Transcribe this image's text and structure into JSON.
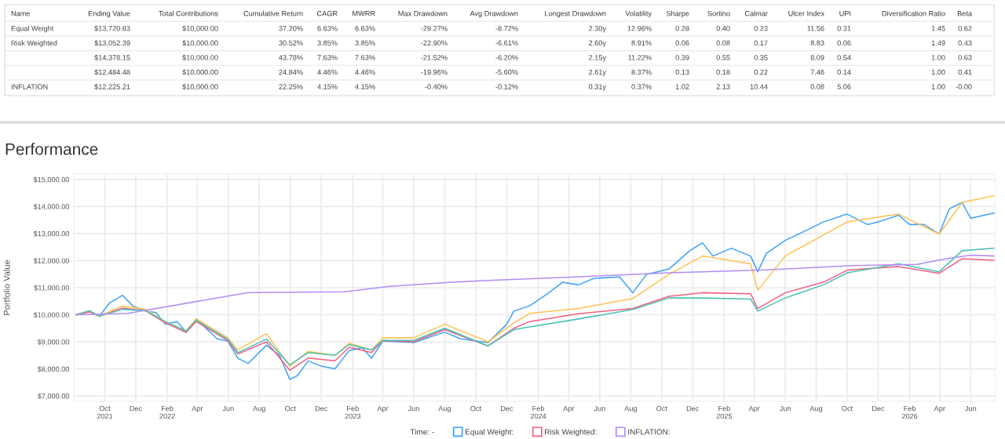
{
  "chart_data": [
    {
      "type": "other",
      "categories": [
        "Name",
        "Ending Value",
        "Total Contributions",
        "Cumulative Return",
        "CAGR",
        "MWRR",
        "Max Drawdown",
        "Avg Drawdown",
        "Longest Drawdown",
        "Volatility",
        "Sharpe",
        "Sortino",
        "Calmar",
        "Ulcer Index",
        "UPI",
        "Diversification Ratio",
        "Beta"
      ],
      "cell_labels": [
        [
          "Equal Weight",
          "$13,720.83",
          "$10,000.00",
          "37.20%",
          "6.63%",
          "6.63%",
          "-29.27%",
          "-8.72%",
          "2.30y",
          "12.96%",
          "0.28",
          "0.40",
          "0.23",
          "11.56",
          "0.31",
          "1.45",
          "0.62"
        ],
        [
          "Risk Weighted",
          "$13,052.39",
          "$10,000.00",
          "30.52%",
          "3.85%",
          "3.85%",
          "-22.90%",
          "-6.61%",
          "2.60y",
          "8.91%",
          "0.06",
          "0.08",
          "0.17",
          "8.83",
          "0.06",
          "1.49",
          "0.43"
        ],
        [
          null,
          "$14,378.15",
          "$10,000.00",
          "43.78%",
          "7.63%",
          "7.63%",
          "-21.52%",
          "-6.20%",
          "2.15y",
          "11.22%",
          "0.39",
          "0.55",
          "0.35",
          "8.09",
          "0.54",
          "1.00",
          "0.63"
        ],
        [
          null,
          "$12,484.48",
          "$10,000.00",
          "24.84%",
          "4.46%",
          "4.46%",
          "-19.96%",
          "-5.60%",
          "2.61y",
          "8.37%",
          "0.13",
          "0.18",
          "0.22",
          "7.46",
          "0.14",
          "1.00",
          "0.41"
        ],
        [
          "INFLATION",
          "$12,225.21",
          "$10,000.00",
          "22.25%",
          "4.15%",
          "4.15%",
          "-0.40%",
          "-0.12%",
          "0.31y",
          "0.37%",
          "1.02",
          "2.13",
          "10.44",
          "0.08",
          "5.06",
          "1.00",
          "-0.00"
        ]
      ]
    },
    {
      "type": "line",
      "title": "Performance",
      "ylabel": "Portfolio Value",
      "legend_title": "Time: -",
      "legend": "bottom",
      "grid": true,
      "xlim": [
        "2021-08-01",
        "2026-07-20"
      ],
      "xticks": [
        {
          "value": "2021-10-01",
          "label": "Oct\n2021"
        },
        {
          "value": "2021-12-01",
          "label": "Dec"
        },
        {
          "value": "2022-02-01",
          "label": "Feb\n2022"
        },
        {
          "value": "2022-04-01",
          "label": "Apr"
        },
        {
          "value": "2022-06-01",
          "label": "Jun"
        },
        {
          "value": "2022-08-01",
          "label": "Aug"
        },
        {
          "value": "2022-10-01",
          "label": "Oct"
        },
        {
          "value": "2022-12-01",
          "label": "Dec"
        },
        {
          "value": "2023-02-01",
          "label": "Feb\n2023"
        },
        {
          "value": "2023-04-01",
          "label": "Apr"
        },
        {
          "value": "2023-06-01",
          "label": "Jun"
        },
        {
          "value": "2023-08-01",
          "label": "Aug"
        },
        {
          "value": "2023-10-01",
          "label": "Oct"
        },
        {
          "value": "2023-12-01",
          "label": "Dec"
        },
        {
          "value": "2024-02-01",
          "label": "Feb\n2024"
        },
        {
          "value": "2024-04-01",
          "label": "Apr"
        },
        {
          "value": "2024-06-01",
          "label": "Jun"
        },
        {
          "value": "2024-08-01",
          "label": "Aug"
        },
        {
          "value": "2024-10-01",
          "label": "Oct"
        },
        {
          "value": "2024-12-01",
          "label": "Dec"
        },
        {
          "value": "2025-02-01",
          "label": "Feb\n2025"
        },
        {
          "value": "2025-04-01",
          "label": "Apr"
        },
        {
          "value": "2025-06-01",
          "label": "Jun"
        },
        {
          "value": "2025-08-01",
          "label": "Aug"
        },
        {
          "value": "2025-10-01",
          "label": "Oct"
        },
        {
          "value": "2025-12-01",
          "label": "Dec"
        },
        {
          "value": "2026-02-01",
          "label": "Feb\n2026"
        },
        {
          "value": "2026-04-01",
          "label": "Apr"
        },
        {
          "value": "2026-06-01",
          "label": "Jun"
        }
      ],
      "ylim": [
        6800,
        15200
      ],
      "yticks": [
        {
          "value": 7000,
          "label": "$7,000.00"
        },
        {
          "value": 8000,
          "label": "$8,000.00"
        },
        {
          "value": 9000,
          "label": "$9,000.00"
        },
        {
          "value": 10000,
          "label": "$10,000.00"
        },
        {
          "value": 11000,
          "label": "$11,000.00"
        },
        {
          "value": 12000,
          "label": "$12,000.00"
        },
        {
          "value": 13000,
          "label": "$13,000.00"
        },
        {
          "value": 14000,
          "label": "$14,000.00"
        },
        {
          "value": 15000,
          "label": "$15,000.00"
        }
      ],
      "x": [
        "2021-08-06",
        "2021-09-01",
        "2021-09-20",
        "2021-11-05",
        "2021-12-20",
        "2022-01-28",
        "2022-03-10",
        "2022-03-30",
        "2022-05-31",
        "2022-06-20",
        "2022-08-15",
        "2022-09-30",
        "2022-11-05",
        "2022-12-28",
        "2023-01-25",
        "2023-03-10",
        "2023-04-01",
        "2023-06-01",
        "2023-08-01",
        "2023-10-25",
        "2023-12-15",
        "2024-01-15",
        "2024-04-20",
        "2024-08-05",
        "2024-10-15",
        "2024-12-20",
        "2025-03-25",
        "2025-04-08",
        "2025-06-01",
        "2025-08-15",
        "2025-10-01",
        "2026-01-10",
        "2026-03-31",
        "2026-05-15",
        "2026-07-17"
      ],
      "series": [
        {
          "name": "Equal Weight:",
          "color": "#3fa3f5",
          "x": [
            "2021-08-06",
            "2021-09-01",
            "2021-09-20",
            "2021-10-10",
            "2021-11-05",
            "2021-11-25",
            "2021-12-20",
            "2022-01-10",
            "2022-01-28",
            "2022-02-20",
            "2022-03-10",
            "2022-03-30",
            "2022-05-10",
            "2022-05-31",
            "2022-06-20",
            "2022-07-10",
            "2022-08-15",
            "2022-09-10",
            "2022-09-30",
            "2022-10-15",
            "2022-11-05",
            "2022-12-01",
            "2022-12-28",
            "2023-01-25",
            "2023-02-20",
            "2023-03-10",
            "2023-04-01",
            "2023-06-01",
            "2023-08-01",
            "2023-09-01",
            "2023-10-25",
            "2023-12-01",
            "2023-12-15",
            "2024-01-15",
            "2024-02-15",
            "2024-03-20",
            "2024-04-20",
            "2024-05-20",
            "2024-07-10",
            "2024-08-05",
            "2024-09-01",
            "2024-10-15",
            "2024-11-25",
            "2024-12-20",
            "2025-01-10",
            "2025-02-15",
            "2025-03-25",
            "2025-04-08",
            "2025-04-25",
            "2025-06-01",
            "2025-07-15",
            "2025-08-15",
            "2025-10-01",
            "2025-11-10",
            "2025-12-01",
            "2026-01-10",
            "2026-02-01",
            "2026-03-01",
            "2026-03-31",
            "2026-04-20",
            "2026-05-15",
            "2026-06-01",
            "2026-07-17"
          ],
          "values": [
            10000,
            10135,
            9940,
            10430,
            10720,
            10330,
            10135,
            10080,
            9650,
            9750,
            9360,
            9845,
            9110,
            9030,
            8390,
            8200,
            8875,
            8490,
            7615,
            7750,
            8295,
            8100,
            8000,
            8680,
            8780,
            8390,
            9030,
            8970,
            9360,
            9110,
            8970,
            9650,
            10135,
            10330,
            10720,
            11200,
            11105,
            11340,
            11400,
            10815,
            11490,
            11685,
            12365,
            12655,
            12170,
            12460,
            12170,
            11590,
            12270,
            12750,
            13140,
            13430,
            13720,
            13335,
            13430,
            13680,
            13335,
            13335,
            12985,
            13915,
            14150,
            13565,
            13760
          ]
        },
        {
          "name": "Risk Weighted:",
          "color": "#f06080",
          "values": [
            10000,
            10100,
            9950,
            10250,
            10150,
            9700,
            9350,
            9750,
            9050,
            8550,
            9000,
            7950,
            8400,
            8300,
            8800,
            8600,
            9050,
            9000,
            9450,
            8850,
            9500,
            9750,
            10040,
            10230,
            10680,
            10815,
            10775,
            10230,
            10815,
            11200,
            11650,
            11780,
            11530,
            12070,
            12015
          ]
        },
        {
          "color": "#ffc250",
          "values": [
            10000,
            10150,
            9950,
            10330,
            10200,
            9750,
            9400,
            9850,
            9150,
            8700,
            9300,
            8100,
            8650,
            8500,
            8950,
            8700,
            9150,
            9150,
            9650,
            9000,
            9700,
            10050,
            10230,
            10600,
            11490,
            12170,
            11880,
            10910,
            12170,
            12945,
            13430,
            13720,
            12985,
            14150,
            14400
          ]
        },
        {
          "color": "#4cc1b5",
          "values": [
            10000,
            10150,
            9950,
            10200,
            10150,
            9750,
            9400,
            9800,
            9100,
            8600,
            9100,
            8150,
            8600,
            8500,
            8900,
            8700,
            9050,
            9050,
            9500,
            8850,
            9450,
            9555,
            9845,
            10195,
            10620,
            10620,
            10580,
            10135,
            10620,
            11105,
            11550,
            11880,
            11590,
            12365,
            12460
          ]
        },
        {
          "name": "INFLATION:",
          "color": "#b18cf5",
          "x": [
            "2021-08-06",
            "2021-11-15",
            "2022-07-10",
            "2023-01-15",
            "2023-04-15",
            "2023-08-15",
            "2023-10-15",
            "2024-04-15",
            "2024-10-15",
            "2025-04-15",
            "2025-10-15",
            "2026-02-15",
            "2026-04-15",
            "2026-06-01",
            "2026-07-17"
          ],
          "values": [
            10000,
            10050,
            10820,
            10850,
            11050,
            11200,
            11260,
            11400,
            11550,
            11650,
            11820,
            11860,
            12070,
            12200,
            12170
          ]
        }
      ]
    }
  ]
}
